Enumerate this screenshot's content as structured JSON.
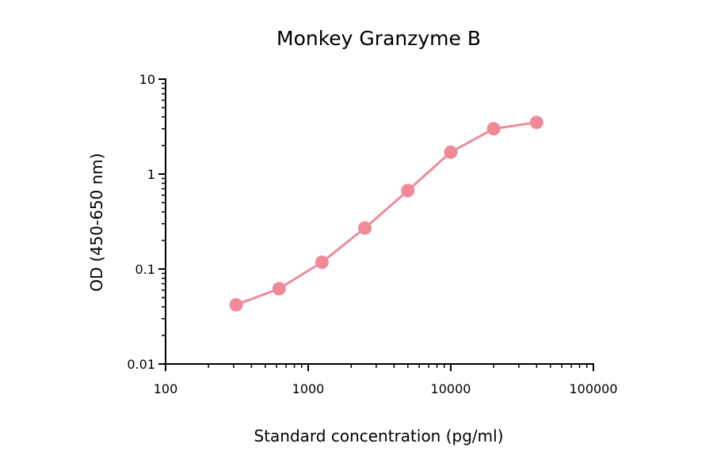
{
  "chart_data": {
    "type": "line",
    "title": "Monkey Granzyme B",
    "xlabel": "Standard concentration (pg/ml)",
    "ylabel": "OD (450-650 nm)",
    "x_scale": "log",
    "y_scale": "log",
    "xlim": [
      100,
      100000
    ],
    "ylim": [
      0.01,
      10
    ],
    "x_ticks": [
      {
        "value": 100,
        "label": "100"
      },
      {
        "value": 1000,
        "label": "1000"
      },
      {
        "value": 10000,
        "label": "10000"
      },
      {
        "value": 100000,
        "label": "100000"
      }
    ],
    "y_ticks": [
      {
        "value": 0.01,
        "label": "0.01"
      },
      {
        "value": 0.1,
        "label": "0.1"
      },
      {
        "value": 1,
        "label": "1"
      },
      {
        "value": 10,
        "label": "10"
      }
    ],
    "grid": false,
    "legend": "none",
    "series": [
      {
        "color": "#f08a99",
        "marker": "circle",
        "points": [
          {
            "x": 312.5,
            "y": 0.042
          },
          {
            "x": 625,
            "y": 0.062
          },
          {
            "x": 1250,
            "y": 0.118
          },
          {
            "x": 2500,
            "y": 0.27
          },
          {
            "x": 5000,
            "y": 0.67
          },
          {
            "x": 10000,
            "y": 1.7
          },
          {
            "x": 20000,
            "y": 3.0
          },
          {
            "x": 40000,
            "y": 3.5
          }
        ]
      }
    ]
  }
}
